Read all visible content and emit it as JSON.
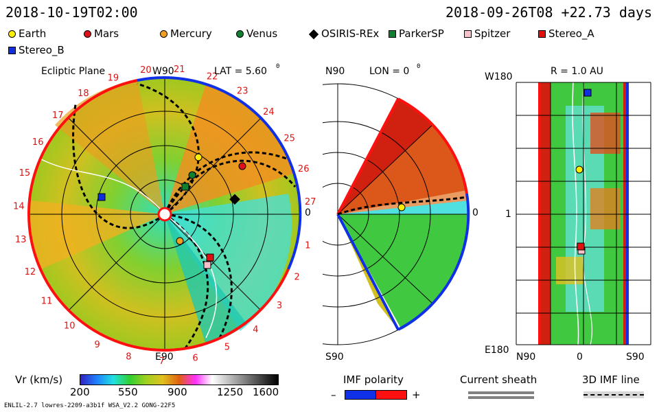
{
  "header": {
    "left_time": "2018-10-19T02:00",
    "right_time": "2018-09-26T08 +22.73 days"
  },
  "legend": [
    {
      "name": "Earth",
      "color": "#ffee00",
      "shape": "circle"
    },
    {
      "name": "Mars",
      "color": "#e0101a",
      "shape": "circle"
    },
    {
      "name": "Mercury",
      "color": "#f0a020",
      "shape": "circle"
    },
    {
      "name": "Venus",
      "color": "#108030",
      "shape": "circle"
    },
    {
      "name": "OSIRIS-REx",
      "color": "#000000",
      "shape": "diamond"
    },
    {
      "name": "ParkerSP",
      "color": "#108030",
      "shape": "square"
    },
    {
      "name": "Spitzer",
      "color": "#f8c0c8",
      "shape": "square"
    },
    {
      "name": "Stereo_A",
      "color": "#e01010",
      "shape": "square"
    },
    {
      "name": "Stereo_B",
      "color": "#1030e0",
      "shape": "square"
    }
  ],
  "ecliptic": {
    "title": "Ecliptic Plane",
    "top_label": "W90",
    "bottom_label": "E90",
    "lat": "LAT = 5.60",
    "right_label": "0",
    "deg": "0",
    "carrington": [
      "1",
      "2",
      "3",
      "4",
      "5",
      "6",
      "7",
      "8",
      "9",
      "10",
      "11",
      "12",
      "13",
      "14",
      "15",
      "16",
      "17",
      "18",
      "19",
      "20",
      "21",
      "22",
      "23",
      "24",
      "25",
      "26",
      "27"
    ]
  },
  "meridional": {
    "title": "LON = 0",
    "deg": "0",
    "top_label": "N90",
    "bottom_label": "S90",
    "right_label": "0"
  },
  "map": {
    "title": "R = 1.0 AU",
    "top_left": "W180",
    "mid_left": "1",
    "bottom_left": "E180",
    "x_left": "N90",
    "x_mid": "0",
    "x_right": "S90"
  },
  "colorbar": {
    "label": "Vr (km/s)",
    "ticks": [
      "200",
      "550",
      "900",
      "1250",
      "1600"
    ]
  },
  "imf": {
    "label": "IMF polarity",
    "minus": "–",
    "plus": "+"
  },
  "sheath": {
    "label": "Current sheath"
  },
  "imf3d": {
    "label": "3D IMF line"
  },
  "footer": {
    "text": "ENLIL-2.7 lowres-2209-a3b1f WSA_V2.2 GONG-22F5"
  }
}
